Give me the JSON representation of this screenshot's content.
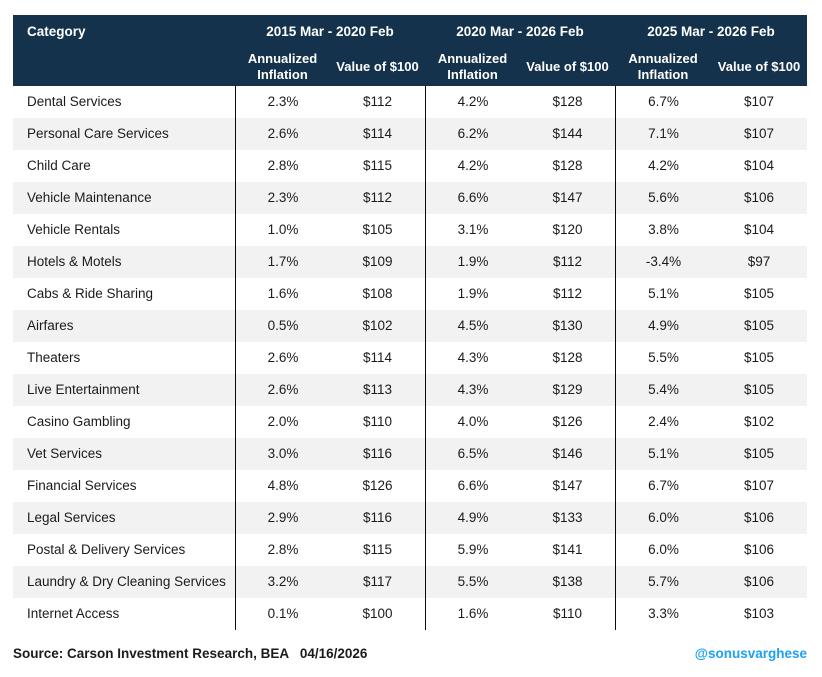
{
  "chart_data": {
    "type": "table",
    "title": "",
    "category_header": "Category",
    "column_groups": [
      "2015 Mar - 2020 Feb",
      "2020 Mar - 2026 Feb",
      "2025 Mar - 2026 Feb"
    ],
    "sub_columns": [
      "Annualized Inflation",
      "Value of $100"
    ],
    "rows": [
      {
        "category": "Dental Services",
        "values": [
          "2.3%",
          "$112",
          "4.2%",
          "$128",
          "6.7%",
          "$107"
        ]
      },
      {
        "category": "Personal Care Services",
        "values": [
          "2.6%",
          "$114",
          "6.2%",
          "$144",
          "7.1%",
          "$107"
        ]
      },
      {
        "category": "Child Care",
        "values": [
          "2.8%",
          "$115",
          "4.2%",
          "$128",
          "4.2%",
          "$104"
        ]
      },
      {
        "category": "Vehicle Maintenance",
        "values": [
          "2.3%",
          "$112",
          "6.6%",
          "$147",
          "5.6%",
          "$106"
        ]
      },
      {
        "category": "Vehicle Rentals",
        "values": [
          "1.0%",
          "$105",
          "3.1%",
          "$120",
          "3.8%",
          "$104"
        ]
      },
      {
        "category": "Hotels & Motels",
        "values": [
          "1.7%",
          "$109",
          "1.9%",
          "$112",
          "-3.4%",
          "$97"
        ]
      },
      {
        "category": "Cabs & Ride Sharing",
        "values": [
          "1.6%",
          "$108",
          "1.9%",
          "$112",
          "5.1%",
          "$105"
        ]
      },
      {
        "category": "Airfares",
        "values": [
          "0.5%",
          "$102",
          "4.5%",
          "$130",
          "4.9%",
          "$105"
        ]
      },
      {
        "category": "Theaters",
        "values": [
          "2.6%",
          "$114",
          "4.3%",
          "$128",
          "5.5%",
          "$105"
        ]
      },
      {
        "category": "Live Entertainment",
        "values": [
          "2.6%",
          "$113",
          "4.3%",
          "$129",
          "5.4%",
          "$105"
        ]
      },
      {
        "category": "Casino Gambling",
        "values": [
          "2.0%",
          "$110",
          "4.0%",
          "$126",
          "2.4%",
          "$102"
        ]
      },
      {
        "category": "Vet Services",
        "values": [
          "3.0%",
          "$116",
          "6.5%",
          "$146",
          "5.1%",
          "$105"
        ]
      },
      {
        "category": "Financial Services",
        "values": [
          "4.8%",
          "$126",
          "6.6%",
          "$147",
          "6.7%",
          "$107"
        ]
      },
      {
        "category": "Legal Services",
        "values": [
          "2.9%",
          "$116",
          "4.9%",
          "$133",
          "6.0%",
          "$106"
        ]
      },
      {
        "category": "Postal & Delivery Services",
        "values": [
          "2.8%",
          "$115",
          "5.9%",
          "$141",
          "6.0%",
          "$106"
        ]
      },
      {
        "category": "Laundry & Dry Cleaning Services",
        "values": [
          "3.2%",
          "$117",
          "5.5%",
          "$138",
          "5.7%",
          "$106"
        ]
      },
      {
        "category": "Internet Access",
        "values": [
          "0.1%",
          "$100",
          "1.6%",
          "$110",
          "3.3%",
          "$103"
        ]
      }
    ]
  },
  "footer": {
    "source": "Source: Carson Investment Research, BEA   04/16/2026",
    "handle": "@sonusvarghese"
  },
  "colors": {
    "header_navy": "#14324b",
    "stripe_gray": "#f2f2f2",
    "divider_black": "#0a0a0a",
    "handle_blue": "#1da1f2",
    "body_text": "#1b1b1b"
  }
}
